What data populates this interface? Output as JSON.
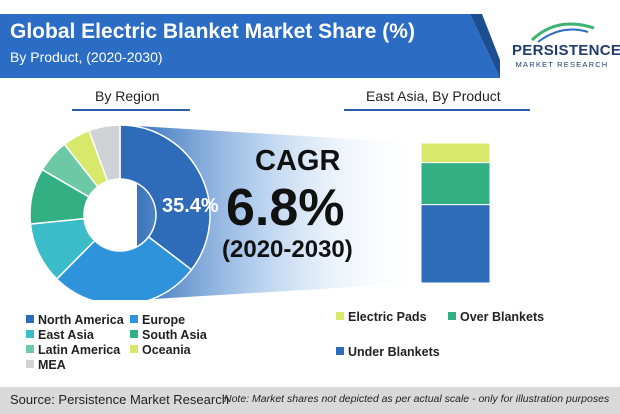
{
  "header": {
    "title": "Global Electric Blanket Market Share (%)",
    "subtitle": "By Product, (2020-2030)"
  },
  "logo": {
    "name": "PERSISTENCE",
    "tagline": "MARKET RESEARCH"
  },
  "left_section_label": "By Region",
  "right_section_label": "East Asia, By Product",
  "cagr": {
    "label": "CAGR",
    "value": "6.8%",
    "period": "(2020-2030)"
  },
  "chart_data": [
    {
      "type": "pie",
      "title": "By Region",
      "donut": true,
      "slices": [
        {
          "name": "North America",
          "value": 35.4,
          "color": "#2e6bb8",
          "label": "35.4%"
        },
        {
          "name": "Europe",
          "value": 27.0,
          "color": "#2f93dc"
        },
        {
          "name": "East Asia",
          "value": 11.0,
          "color": "#3cbcc9"
        },
        {
          "name": "South Asia",
          "value": 10.0,
          "color": "#33b083"
        },
        {
          "name": "Latin America",
          "value": 6.0,
          "color": "#6cc8a5"
        },
        {
          "name": "Oceania",
          "value": 5.0,
          "color": "#d7e86a"
        },
        {
          "name": "MEA",
          "value": 5.6,
          "color": "#d0d3d6"
        }
      ]
    },
    {
      "type": "bar",
      "title": "East Asia, By Product",
      "stacked": true,
      "series": [
        {
          "name": "Under Blankets",
          "value": 56,
          "color": "#2e6bb8"
        },
        {
          "name": "Over Blankets",
          "value": 30,
          "color": "#33b083"
        },
        {
          "name": "Electric Pads",
          "value": 14,
          "color": "#d7e86a"
        }
      ]
    }
  ],
  "left_legend": [
    "North America",
    "Europe",
    "East Asia",
    "South Asia",
    "Latin America",
    "Oceania",
    "MEA"
  ],
  "right_legend": [
    "Electric Pads",
    "Over Blankets",
    "Under Blankets"
  ],
  "footer": {
    "source": "Source: Persistence Market Research",
    "note": "Note: Market shares not depicted as per actual scale - only for illustration purposes"
  }
}
